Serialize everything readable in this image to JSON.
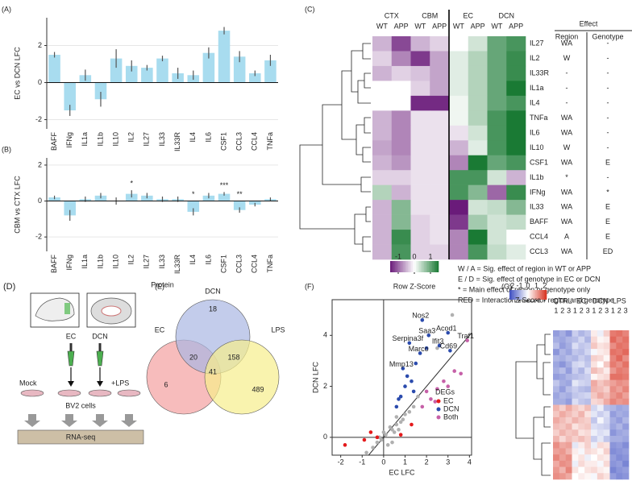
{
  "chart_data": [
    {
      "type": "bar",
      "panel_label": "(A)",
      "y_label": "EC vs DCN LFC",
      "color": "#a8dcef",
      "error_color": "#555",
      "grid": true,
      "categories": [
        "BAFF",
        "IFNg",
        "IL1a",
        "IL1b",
        "IL10",
        "IL2",
        "IL27",
        "IL33",
        "IL33R",
        "IL4",
        "IL6",
        "CSF1",
        "CCL3",
        "CCL4",
        "TNFa"
      ],
      "values": [
        1.5,
        -1.5,
        0.4,
        -0.9,
        1.3,
        0.9,
        0.8,
        1.3,
        0.5,
        0.4,
        1.6,
        2.8,
        1.4,
        0.5,
        1.2
      ],
      "errors": [
        0.15,
        0.3,
        0.3,
        0.4,
        0.5,
        0.3,
        0.15,
        0.15,
        0.3,
        0.25,
        0.3,
        0.2,
        0.3,
        0.15,
        0.3
      ],
      "ylim": [
        -2.5,
        3.5
      ],
      "yticks": [
        -2,
        0,
        2
      ]
    },
    {
      "type": "bar",
      "panel_label": "(B)",
      "y_label": "CBM vs CTX LFC",
      "x_label": "Protein",
      "color": "#a8dcef",
      "error_color": "#555",
      "grid": true,
      "categories": [
        "BAFF",
        "IFNg",
        "IL1a",
        "IL1b",
        "IL10",
        "IL2",
        "IL27",
        "IL33",
        "IL33R",
        "IL4",
        "IL6",
        "CSF1",
        "CCL3",
        "CCL4",
        "TNFa"
      ],
      "values": [
        0.2,
        -0.8,
        0.1,
        0.3,
        0.0,
        0.4,
        0.3,
        0.1,
        0.1,
        -0.6,
        0.3,
        0.4,
        -0.5,
        -0.2,
        0.1
      ],
      "errors": [
        0.1,
        0.3,
        0.15,
        0.15,
        0.2,
        0.2,
        0.15,
        0.15,
        0.15,
        0.2,
        0.15,
        0.1,
        0.15,
        0.1,
        0.1
      ],
      "annotations": [
        {
          "category": "IL2",
          "text": "*"
        },
        {
          "category": "IL4",
          "text": "*"
        },
        {
          "category": "CSF1",
          "text": "***"
        },
        {
          "category": "CCL3",
          "text": "**"
        }
      ],
      "ylim": [
        -2.8,
        2.4
      ],
      "yticks": [
        -2,
        0,
        2
      ]
    },
    {
      "type": "heatmap",
      "panel_label": "(C)",
      "groups": [
        "CTX",
        "CBM",
        "EC",
        "DCN"
      ],
      "subgroups": [
        "WT",
        "APP"
      ],
      "rows": [
        "IL27",
        "IL2",
        "IL33R",
        "IL1a",
        "IL4",
        "TNFa",
        "IL6",
        "IL10",
        "CSF1",
        "IL1b",
        "IFNg",
        "IL33",
        "BAFF",
        "CCL4",
        "CCL3"
      ],
      "row_label_colors": [
        "#222",
        "#222",
        "#222",
        "#222",
        "#222",
        "#222",
        "#222",
        "#222",
        "#d7191c",
        "#222",
        "#222",
        "#d7191c",
        "#d7191c",
        "#d7191c",
        "#d7191c"
      ],
      "values": [
        [
          -0.5,
          -1.2,
          -0.5,
          -0.3,
          0.0,
          0.3,
          1.0,
          1.2
        ],
        [
          -0.3,
          -0.8,
          -1.3,
          -0.6,
          0.2,
          0.5,
          1.0,
          1.3
        ],
        [
          -0.5,
          -0.3,
          -0.4,
          -0.6,
          0.2,
          0.5,
          1.0,
          1.3
        ],
        [
          0.0,
          0.0,
          -0.3,
          -0.6,
          0.2,
          0.5,
          1.0,
          1.5
        ],
        [
          0.0,
          0.0,
          -1.4,
          -1.4,
          0.1,
          0.5,
          1.0,
          1.2
        ],
        [
          -0.5,
          -0.8,
          -0.2,
          -0.2,
          0.1,
          0.5,
          1.2,
          1.5
        ],
        [
          -0.5,
          -0.8,
          -0.2,
          -0.2,
          -0.2,
          0.3,
          1.2,
          1.5
        ],
        [
          -0.6,
          -0.8,
          -0.2,
          -0.2,
          -0.5,
          0.2,
          1.2,
          1.5
        ],
        [
          -0.5,
          -0.7,
          -0.2,
          -0.2,
          -0.8,
          1.5,
          1.0,
          1.2
        ],
        [
          -0.3,
          -0.3,
          -0.2,
          -0.2,
          1.2,
          1.2,
          0.3,
          -0.5
        ],
        [
          0.5,
          -0.5,
          -0.2,
          -0.2,
          1.2,
          0.8,
          -1.0,
          1.3
        ],
        [
          -0.5,
          0.8,
          -0.2,
          -0.2,
          -1.5,
          0.3,
          0.4,
          0.8
        ],
        [
          -0.5,
          0.8,
          -0.3,
          -0.2,
          -1.3,
          0.6,
          0.3,
          0.4
        ],
        [
          -0.5,
          1.3,
          -0.3,
          -0.2,
          -0.8,
          1.5,
          0.3,
          0.0
        ],
        [
          -0.5,
          1.2,
          -0.3,
          -0.3,
          -0.8,
          1.2,
          0.4,
          0.2
        ]
      ],
      "colormap": [
        "#6a1b7a",
        "#ffffff",
        "#1a7a34"
      ],
      "zlim": [
        -1.5,
        1.5
      ],
      "legend_title": "Row Z-Score",
      "legend_ticks": [
        -1,
        0,
        1
      ],
      "effects": {
        "title": "Effect",
        "columns": [
          "Region",
          "Genotype"
        ],
        "rows": [
          [
            "WA",
            "-"
          ],
          [
            "W",
            "-"
          ],
          [
            "-",
            "-"
          ],
          [
            "-",
            "-"
          ],
          [
            "-",
            "-"
          ],
          [
            "WA",
            "-"
          ],
          [
            "WA",
            "-"
          ],
          [
            "W",
            "-"
          ],
          [
            "WA",
            "E"
          ],
          [
            "*",
            "-"
          ],
          [
            "WA",
            "*"
          ],
          [
            "WA",
            "E"
          ],
          [
            "WA",
            "E"
          ],
          [
            "A",
            "E"
          ],
          [
            "WA",
            "ED"
          ]
        ]
      },
      "notes": [
        "W / A = Sig. effect of region in WT or APP",
        "E / D = Sig. effect of genotype in EC or DCN",
        "* = Main effect of region or genotype only"
      ],
      "note_red": {
        "key": "RED",
        "text": "= Interaction effect for region and genotype",
        "color": "#d7191c"
      }
    },
    {
      "type": "venn",
      "panel_label": "(E)",
      "sets": [
        "EC",
        "DCN",
        "LPS"
      ],
      "colors": [
        "#f4a0a0",
        "#a9b6e2",
        "#f7ee8c"
      ],
      "values": [
        6,
        18,
        489,
        20,
        41,
        158
      ]
    },
    {
      "type": "scatter",
      "panel_label": "(F)",
      "x_label": "EC LFC",
      "y_label": "DCN LFC",
      "legend_title": "DEGs",
      "xlim": [
        -2.4,
        4.1
      ],
      "ylim": [
        -0.7,
        5.4
      ],
      "xticks": [
        -2,
        -1,
        0,
        1,
        2,
        3,
        4
      ],
      "yticks": [
        0,
        2,
        4
      ],
      "other_points": {
        "color": "#b0b0b0",
        "x": [
          -0.3,
          0.1,
          0.4,
          0.6,
          -0.2,
          0.2,
          0.8,
          1.0,
          0.5,
          -0.5,
          0.3,
          0.7,
          1.2,
          0.0,
          -0.1,
          0.9,
          1.4,
          0.4,
          -0.8,
          0.6,
          1.6,
          2.5,
          3.2
        ],
        "values": [
          -0.2,
          0.1,
          0.3,
          0.5,
          0.0,
          -0.3,
          0.6,
          0.9,
          0.2,
          -0.4,
          0.4,
          0.3,
          1.0,
          0.2,
          -0.1,
          0.7,
          1.2,
          -0.2,
          -0.6,
          0.8,
          1.6,
          3.5,
          4.8
        ]
      },
      "series": [
        {
          "name": "EC",
          "color": "#e41a1c",
          "x": [
            -0.9,
            -0.6,
            -0.3,
            0.8,
            1.3,
            -1.8
          ],
          "values": [
            -0.1,
            0.2,
            0.0,
            0.1,
            0.5,
            -0.3
          ]
        },
        {
          "name": "DCN",
          "color": "#2b4bad",
          "x": [
            0.6,
            0.8,
            1.0,
            1.1,
            1.3,
            1.5,
            1.7,
            0.9,
            1.2,
            1.8,
            2.0,
            2.1,
            3.0,
            3.1,
            0.7,
            1.4,
            2.6
          ],
          "values": [
            1.2,
            1.6,
            2.0,
            2.4,
            2.2,
            2.9,
            3.3,
            2.7,
            3.7,
            4.6,
            3.5,
            4.0,
            4.1,
            3.4,
            1.5,
            1.8,
            3.6
          ]
        },
        {
          "name": "Both",
          "color": "#c660a8",
          "x": [
            1.8,
            2.2,
            2.5,
            2.8,
            3.0,
            3.3,
            3.6,
            3.9,
            2.4,
            2.0
          ],
          "values": [
            1.2,
            1.5,
            1.9,
            2.2,
            2.0,
            2.6,
            2.5,
            3.8,
            1.4,
            1.8
          ]
        }
      ],
      "annotations": [
        {
          "text": "Nos2",
          "x": 1.8,
          "y": 4.6
        },
        {
          "text": "Saa3",
          "x": 2.1,
          "y": 4.0
        },
        {
          "text": "Acod1",
          "x": 3.0,
          "y": 4.1
        },
        {
          "text": "Serpina3f",
          "x": 1.2,
          "y": 3.7
        },
        {
          "text": "Marco",
          "x": 1.7,
          "y": 3.3
        },
        {
          "text": "Ifit3",
          "x": 2.6,
          "y": 3.6
        },
        {
          "text": "Cd69",
          "x": 3.1,
          "y": 3.4
        },
        {
          "text": "Traf1",
          "x": 3.9,
          "y": 3.8
        },
        {
          "text": "Mmp13",
          "x": 0.9,
          "y": 2.7
        }
      ]
    },
    {
      "type": "heatmap",
      "panel_label": "(G)",
      "groups": [
        "CTRL",
        "EC",
        "DCN",
        "LPS"
      ],
      "subgroups": [
        "1",
        "2",
        "3"
      ],
      "colormap": [
        "#3b4cc0",
        "#ffffff",
        "#d7301f"
      ],
      "zlim": [
        -2.2,
        2.2
      ],
      "legend_title": "Z-Score",
      "legend_ticks": [
        -2,
        -1,
        0,
        1,
        2
      ],
      "values": [
        [
          -1.2,
          -1.0,
          -1.3,
          -0.6,
          -0.9,
          -0.7,
          0.2,
          -0.2,
          0.5,
          1.4,
          1.5,
          1.3
        ],
        [
          -1.0,
          -1.1,
          -0.9,
          -0.8,
          -0.5,
          -0.9,
          0.4,
          0.1,
          0.2,
          1.6,
          1.3,
          1.5
        ],
        [
          -0.8,
          -1.2,
          -1.0,
          -0.4,
          -0.7,
          -0.6,
          0.6,
          0.3,
          0.4,
          1.2,
          1.5,
          1.4
        ],
        [
          -1.3,
          -0.9,
          -1.1,
          -0.7,
          -0.8,
          -0.5,
          -0.1,
          0.2,
          0.3,
          1.5,
          1.4,
          1.6
        ],
        [
          -0.9,
          -1.0,
          -0.8,
          -0.9,
          -0.6,
          -0.8,
          0.5,
          0.4,
          0.1,
          1.3,
          1.6,
          1.2
        ],
        [
          -1.1,
          -1.3,
          -1.0,
          -0.5,
          -0.4,
          -0.7,
          0.3,
          0.0,
          0.6,
          1.4,
          1.2,
          1.5
        ],
        [
          -1.0,
          -0.8,
          -1.2,
          -0.6,
          -0.9,
          -0.4,
          0.7,
          0.5,
          0.2,
          1.1,
          1.4,
          1.3
        ],
        [
          -1.2,
          -1.1,
          -0.9,
          -0.8,
          -0.7,
          -0.6,
          0.1,
          0.3,
          0.4,
          1.5,
          1.5,
          1.4
        ],
        [
          -0.7,
          -1.0,
          -1.1,
          -0.3,
          -0.5,
          -0.6,
          0.9,
          0.6,
          0.8,
          1.0,
          1.2,
          1.1
        ],
        [
          -0.9,
          -1.2,
          -0.8,
          -0.6,
          -0.8,
          -0.9,
          0.8,
          0.7,
          0.5,
          1.2,
          1.0,
          1.3
        ],
        [
          -1.1,
          -0.9,
          -1.0,
          -0.7,
          -0.6,
          -0.5,
          0.6,
          0.9,
          0.7,
          1.1,
          1.3,
          1.0
        ],
        [
          -1.0,
          -1.0,
          -1.2,
          -0.4,
          -0.7,
          -0.8,
          0.4,
          0.5,
          0.9,
          1.3,
          1.1,
          1.2
        ],
        [
          0.8,
          0.5,
          0.9,
          0.6,
          0.4,
          0.7,
          -0.5,
          -0.2,
          -0.8,
          -0.9,
          -1.1,
          -1.0
        ],
        [
          0.6,
          0.9,
          0.7,
          0.5,
          0.8,
          0.3,
          -0.3,
          -0.6,
          -0.4,
          -1.2,
          -1.0,
          -1.1
        ],
        [
          0.9,
          0.7,
          0.5,
          0.8,
          0.6,
          0.5,
          -0.7,
          -0.1,
          -0.5,
          -1.0,
          -1.2,
          -0.9
        ],
        [
          0.7,
          0.6,
          0.8,
          0.3,
          0.5,
          0.6,
          -0.4,
          -0.5,
          -0.6,
          -1.1,
          -0.9,
          -1.2
        ],
        [
          0.5,
          0.8,
          0.6,
          0.7,
          0.3,
          0.4,
          -0.2,
          -0.4,
          -0.3,
          -1.3,
          -1.1,
          -1.0
        ],
        [
          0.8,
          0.4,
          0.7,
          0.5,
          0.7,
          0.5,
          -0.6,
          -0.3,
          -0.7,
          -1.0,
          -1.0,
          -1.1
        ],
        [
          1.2,
          0.9,
          1.0,
          -0.3,
          0.2,
          0.5,
          -0.2,
          0.4,
          0.3,
          -1.3,
          -1.2,
          -1.4
        ],
        [
          1.0,
          1.1,
          0.8,
          0.2,
          -0.1,
          0.4,
          0.3,
          0.1,
          0.5,
          -1.4,
          -1.3,
          -1.2
        ],
        [
          1.3,
          1.0,
          1.2,
          0.1,
          0.3,
          -0.2,
          0.0,
          0.3,
          0.2,
          -1.2,
          -1.4,
          -1.3
        ],
        [
          0.9,
          1.2,
          1.1,
          -0.2,
          0.4,
          0.2,
          0.2,
          -0.1,
          0.4,
          -1.3,
          -1.2,
          -1.5
        ],
        [
          1.1,
          0.8,
          1.3,
          0.3,
          0.0,
          0.3,
          0.4,
          0.2,
          0.1,
          -1.5,
          -1.3,
          -1.2
        ],
        [
          1.2,
          1.1,
          0.9,
          0.0,
          0.2,
          0.1,
          -0.1,
          0.5,
          0.3,
          -1.2,
          -1.4,
          -1.3
        ]
      ]
    }
  ],
  "diagram": {
    "panel_label": "(D)",
    "labels": {
      "ec": "EC",
      "dcn": "DCN",
      "mock": "Mock",
      "lps": "+LPS",
      "cells": "BV2 cells",
      "seq": "RNA-seq"
    }
  }
}
